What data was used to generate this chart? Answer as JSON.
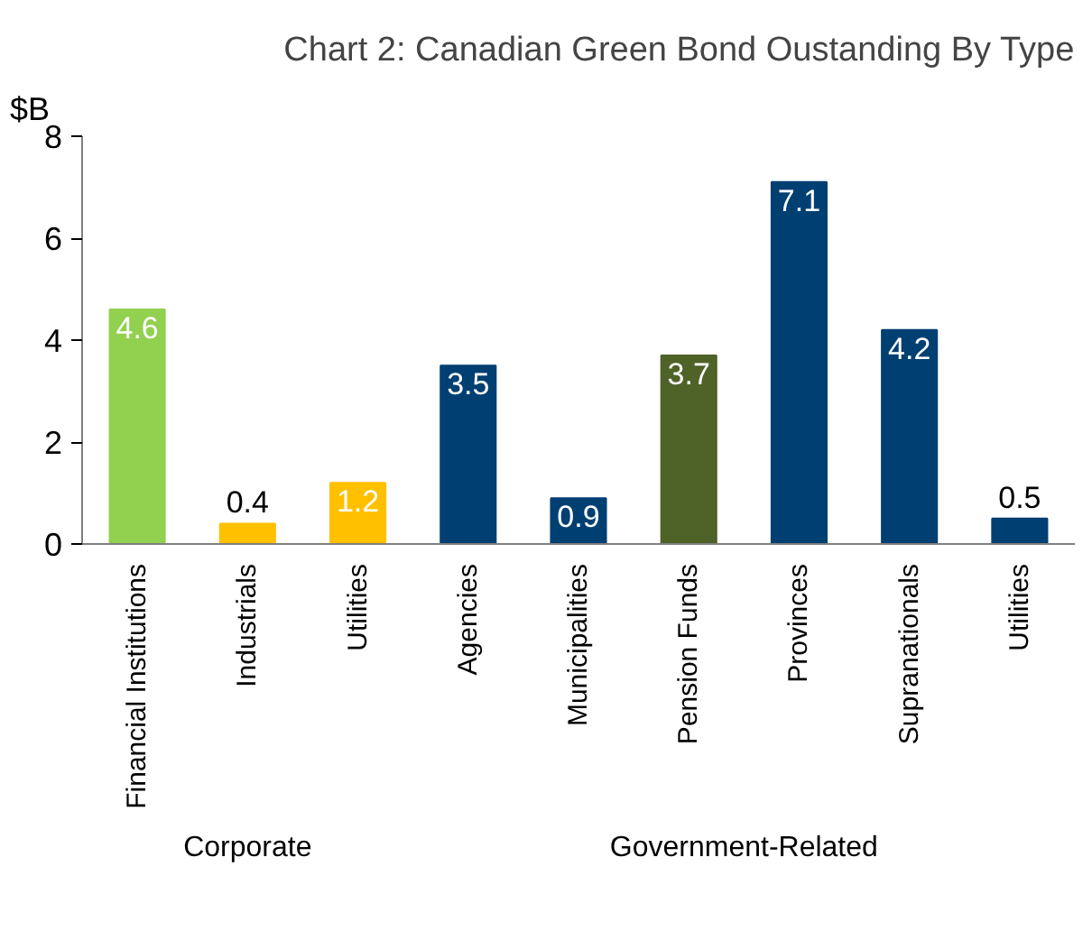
{
  "chart_data": {
    "type": "bar",
    "title": "Chart 2: Canadian Green Bond Oustanding By Type",
    "ylabel": "$B",
    "categories": [
      "Financial Institutions",
      "Industrials",
      "Utilities",
      "Agencies",
      "Municipalities",
      "Pension Funds",
      "Provinces",
      "Supranationals",
      "Utilities"
    ],
    "values": [
      4.6,
      0.4,
      1.2,
      3.5,
      0.9,
      3.7,
      7.1,
      4.2,
      0.5
    ],
    "colors": [
      "#92d050",
      "#ffc000",
      "#ffc000",
      "#003f72",
      "#003f72",
      "#4f6228",
      "#003f72",
      "#003f72",
      "#003f72"
    ],
    "ylim": [
      0,
      8
    ],
    "yticks": [
      0,
      2,
      4,
      6,
      8
    ],
    "grid": false,
    "data_labels": true,
    "annotations": [
      "Corporate",
      "Government-Related"
    ]
  }
}
